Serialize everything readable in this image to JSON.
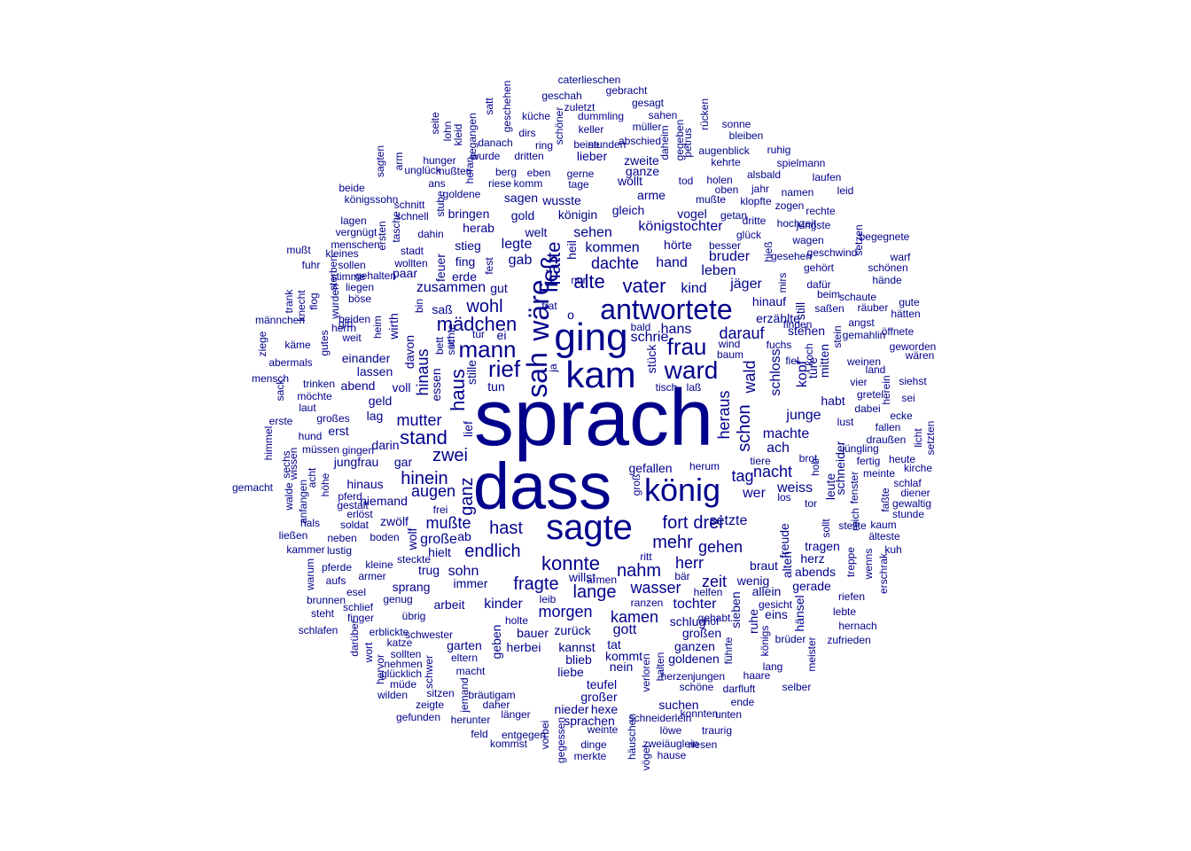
{
  "colors": {
    "text": "#00008b",
    "background": "#ffffff"
  },
  "wordcloud": {
    "words": [
      "sprach",
      "dass",
      "könig",
      "sagte",
      "ging",
      "kam",
      "antwortete",
      "ward",
      "sah",
      "wäre",
      "frau",
      "rief",
      "mann",
      "mädchen",
      "ließ",
      "hätte",
      "vater",
      "alte",
      "wohl",
      "haus",
      "hinaus",
      "stand",
      "zwei",
      "mutter",
      "ganz",
      "hinein",
      "augen",
      "mußte",
      "hast",
      "endlich",
      "konnte",
      "nahm",
      "fragte",
      "lange",
      "wasser",
      "herr",
      "mehr",
      "fort",
      "drei",
      "gehen",
      "setzte",
      "zeit",
      "morgen",
      "kamen",
      "tochter",
      "nacht",
      "ach",
      "tag",
      "wer",
      "machte",
      "weiss",
      "schon",
      "wald",
      "heraus",
      "schloss",
      "kopf",
      "türe",
      "junge",
      "darauf",
      "hans",
      "kind",
      "jäger",
      "bruder",
      "leben",
      "hand",
      "hörte",
      "königstochter",
      "dachte",
      "kommen",
      "sehen",
      "welt",
      "gab",
      "legte",
      "fing",
      "gut",
      "zusammen",
      "saß",
      "königin",
      "gleich",
      "wusste",
      "sagen",
      "gold",
      "bringen",
      "herab",
      "stieg",
      "erde",
      "paar",
      "wollten",
      "stadt",
      "feuer",
      "geld",
      "abend",
      "lassen",
      "einander",
      "davon",
      "essen",
      "bett",
      "voll",
      "hinaus",
      "niemand",
      "pferd",
      "zwölf",
      "gar",
      "darin",
      "lag",
      "erst",
      "jungfrau",
      "gingen",
      "wirth",
      "heim",
      "beiden",
      "weit",
      "herrn",
      "böse",
      "liegen",
      "wurden",
      "suchte",
      "stille",
      "tun",
      "lief",
      "wolf",
      "große",
      "ab",
      "hielt",
      "trug",
      "sohn",
      "immer",
      "sprang",
      "arbeit",
      "kinder",
      "geben",
      "bauer",
      "zurück",
      "gott",
      "großen",
      "goldenen",
      "ganzen",
      "schlug",
      "willst",
      "tat",
      "herbei",
      "kannst",
      "blieb",
      "kommt",
      "nein",
      "liebe",
      "teufel",
      "nieder",
      "hexe",
      "großer",
      "sprachen",
      "suchen",
      "schneiderlein",
      "konnten",
      "unten",
      "löwe",
      "traurig",
      "zweiäuglein",
      "riesen",
      "hause",
      "hänsel",
      "brüder",
      "königs",
      "ruhe",
      "sieben",
      "allein",
      "wenig",
      "braut",
      "alten",
      "freude",
      "herz",
      "tragen",
      "abends",
      "gerade",
      "gesicht",
      "eins",
      "lang",
      "haare",
      "darfluft",
      "selber",
      "meister",
      "zufrieden",
      "lebte",
      "hernach",
      "riefen",
      "sollt",
      "leute",
      "schneider",
      "fenster",
      "reich",
      "stellte",
      "kaum",
      "älteste",
      "kuh",
      "wenns",
      "erschrak",
      "treppe",
      "gefallen",
      "herum",
      "groß",
      "brot",
      "tiere",
      "los",
      "tor",
      "hob",
      "fertig",
      "meinte",
      "diener",
      "gewaltig",
      "stunde",
      "faßte",
      "schlaf",
      "heute",
      "kirche",
      "licht",
      "setzten",
      "ecke",
      "fallen",
      "draußen",
      "jüngling",
      "lust",
      "habt",
      "dabei",
      "gretel",
      "sei",
      "vier",
      "siehst",
      "herein",
      "weinen",
      "land",
      "wären",
      "geworden",
      "gemahlin",
      "öffnete",
      "angst",
      "hätten",
      "gute",
      "räuber",
      "schaute",
      "saßen",
      "beim",
      "dafür",
      "stehen",
      "erzählte",
      "hinauf",
      "fuchs",
      "baum",
      "wind",
      "fiel",
      "koch",
      "stein",
      "mitten",
      "hochzeit",
      "wagen",
      "gehört",
      "gesehen",
      "schönen",
      "warf",
      "begegnete",
      "hände",
      "setzen",
      "geschwind",
      "jüngste",
      "rechte",
      "leid",
      "laufen",
      "spielmann",
      "ruhig",
      "namen",
      "zogen",
      "klopfte",
      "jahr",
      "dritte",
      "getan",
      "glück",
      "hieß",
      "mirs",
      "besser",
      "oben",
      "holen",
      "mußte",
      "tod",
      "vogel",
      "zweite",
      "lieber",
      "bleiben",
      "sonne",
      "augenblick",
      "kehrte",
      "alsbald",
      "petrus",
      "gegeben",
      "daheim",
      "rücken",
      "sahen",
      "abschied",
      "müller",
      "gesagt",
      "gebracht",
      "caterlieschen",
      "geschah",
      "zuletzt",
      "dummling",
      "schöner",
      "geschehen",
      "satt",
      "küche",
      "keller",
      "beine",
      "stunden",
      "ring",
      "dirs",
      "danach",
      "dritten",
      "wurde",
      "gegangen",
      "kleid",
      "lohn",
      "seite",
      "hunger",
      "unglück",
      "mußten",
      "heran",
      "ans",
      "stube",
      "goldene",
      "eben",
      "gerne",
      "riese",
      "komm",
      "berg",
      "tage",
      "wollt",
      "ganze",
      "arme",
      "beide",
      "königssohn",
      "schnitt",
      "schnell",
      "sagten",
      "arm",
      "lagen",
      "vergnügt",
      "ersten",
      "tasche",
      "menschen",
      "dahin",
      "kleines",
      "mußt",
      "sollen",
      "gehalten",
      "stimme",
      "fuhr",
      "trank",
      "knecht",
      "flog",
      "sterben",
      "männchen",
      "ziege",
      "käme",
      "abermals",
      "gutes",
      "mensch",
      "trinken",
      "gib",
      "sack",
      "laut",
      "möchte",
      "großes",
      "erste",
      "himmel",
      "wissen",
      "sechs",
      "hund",
      "müssen",
      "acht",
      "höhe",
      "gemacht",
      "walde",
      "anfangen",
      "gestalt",
      "erlöst",
      "hals",
      "soldat",
      "ließen",
      "neben",
      "boden",
      "kammer",
      "lustig",
      "pferde",
      "kleine",
      "steckte",
      "warum",
      "aufs",
      "armer",
      "esel",
      "genug",
      "brunnen",
      "schlief",
      "steht",
      "finger",
      "übrig",
      "schlafen",
      "erblickte",
      "schwester",
      "darüber",
      "katze",
      "garten",
      "wort",
      "sollten",
      "eltern",
      "hervor",
      "nehmen",
      "glücklich",
      "schwer",
      "müde",
      "macht",
      "wilden",
      "sitzen",
      "bräutigam",
      "zeigte",
      "daher",
      "jemand",
      "herunter",
      "länger",
      "gefunden",
      "feld",
      "entgegen",
      "kommst",
      "vorbei",
      "gegessen",
      "dinge",
      "merkte",
      "häuschen",
      "vögel",
      "weinte",
      "verloren",
      "halten",
      "führte",
      "schöne",
      "herzen",
      "jungen",
      "ende",
      "hof",
      "gehabt",
      "helfen",
      "bär",
      "ranzen",
      "leib",
      "holte",
      "armen",
      "ritt",
      "frei",
      "laß",
      "tisch",
      "stück",
      "schrie",
      "bald",
      "ja",
      "tür",
      "ei",
      "un",
      "o",
      "still",
      "finden",
      "fest",
      "bin",
      "heil",
      "nur",
      "trat",
      "ist",
      "wo"
    ]
  }
}
